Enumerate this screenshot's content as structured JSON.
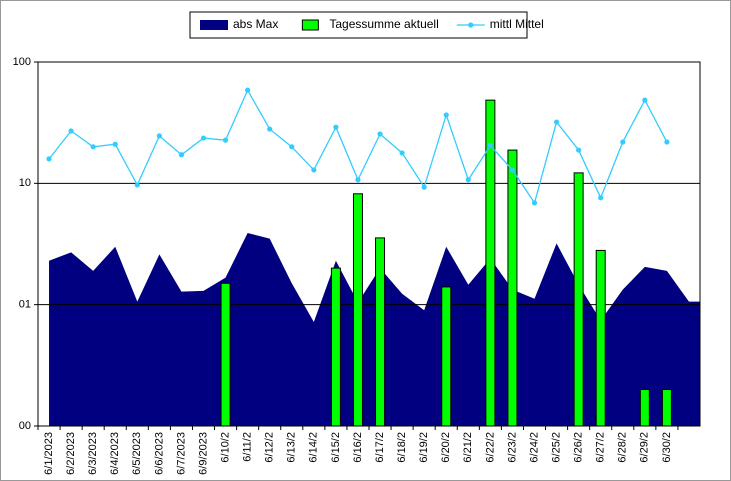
{
  "chart_data": {
    "type": "combo",
    "log_scale": true,
    "grid": true,
    "legend": "top",
    "categories": [
      "6/1/2023",
      "6/2/2023",
      "6/3/2023",
      "6/4/2023",
      "6/5/2023",
      "6/6/2023",
      "6/7/2023",
      "6/9/2023",
      "6/10/2",
      "6/11/2",
      "6/12/2",
      "6/13/2",
      "6/14/2",
      "6/15/2",
      "6/16/2",
      "6/17/2",
      "6/18/2",
      "6/19/2",
      "6/20/2",
      "6/21/2",
      "6/22/2",
      "6/23/2",
      "6/24/2",
      "6/25/2",
      "6/26/2",
      "6/27/2",
      "6/28/2",
      "6/29/2",
      "6/30/2",
      null
    ],
    "series": [
      {
        "name": "abs Max",
        "kind": "area",
        "color": "#000080",
        "values": [
          2.3,
          2.7,
          1.9,
          3.0,
          1.06,
          2.6,
          1.28,
          1.3,
          1.67,
          3.9,
          3.5,
          1.5,
          0.72,
          2.3,
          1.04,
          2.0,
          1.23,
          0.9,
          3.0,
          1.46,
          2.4,
          1.33,
          1.12,
          3.2,
          1.46,
          0.74,
          1.33,
          2.05,
          1.9,
          1.06
        ]
      },
      {
        "name": "Tagessumme aktuell",
        "kind": "bar",
        "color": "#00ff00",
        "values": [
          null,
          null,
          null,
          null,
          null,
          null,
          null,
          null,
          1.5,
          null,
          null,
          null,
          null,
          2.0,
          8.2,
          3.55,
          null,
          null,
          1.4,
          null,
          48.5,
          18.8,
          null,
          null,
          12.2,
          2.8,
          null,
          0.2,
          0.2,
          null
        ]
      },
      {
        "name": "mittl Mittel",
        "kind": "line",
        "color": "#33ccff",
        "values": [
          15.9,
          27,
          20,
          21,
          9.7,
          24.6,
          17.2,
          23.6,
          22.7,
          58.6,
          28,
          20,
          12.9,
          29,
          10.7,
          25.5,
          17.8,
          9.3,
          36.6,
          10.7,
          20.5,
          12.9,
          6.9,
          32,
          18.8,
          7.6,
          21.9,
          48.5,
          21.9,
          null
        ]
      }
    ],
    "ylim": [
      0.1,
      100
    ],
    "yticks": [
      100,
      10,
      {
        "value": 1,
        "label": "01"
      },
      {
        "value": 0.1,
        "label": "00"
      }
    ]
  }
}
